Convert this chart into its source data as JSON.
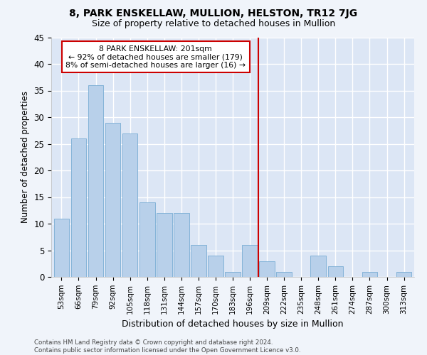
{
  "title": "8, PARK ENSKELLAW, MULLION, HELSTON, TR12 7JG",
  "subtitle": "Size of property relative to detached houses in Mullion",
  "xlabel": "Distribution of detached houses by size in Mullion",
  "ylabel": "Number of detached properties",
  "categories": [
    "53sqm",
    "66sqm",
    "79sqm",
    "92sqm",
    "105sqm",
    "118sqm",
    "131sqm",
    "144sqm",
    "157sqm",
    "170sqm",
    "183sqm",
    "196sqm",
    "209sqm",
    "222sqm",
    "235sqm",
    "248sqm",
    "261sqm",
    "274sqm",
    "287sqm",
    "300sqm",
    "313sqm"
  ],
  "values": [
    11,
    26,
    36,
    29,
    27,
    14,
    12,
    12,
    6,
    4,
    1,
    6,
    3,
    1,
    0,
    4,
    2,
    0,
    1,
    0,
    1
  ],
  "bar_color": "#b8d0ea",
  "bar_edge_color": "#7aadd4",
  "vline_color": "#cc0000",
  "annotation_line1": "8 PARK ENSKELLAW: 201sqm",
  "annotation_line2": "← 92% of detached houses are smaller (179)",
  "annotation_line3": "8% of semi-detached houses are larger (16) →",
  "annotation_box_color": "#cc0000",
  "footer": "Contains HM Land Registry data © Crown copyright and database right 2024.\nContains public sector information licensed under the Open Government Licence v3.0.",
  "ylim": [
    0,
    45
  ],
  "yticks": [
    0,
    5,
    10,
    15,
    20,
    25,
    30,
    35,
    40,
    45
  ],
  "fig_bg_color": "#f0f4fa",
  "ax_bg_color": "#dce6f5",
  "grid_color": "#ffffff",
  "title_fontsize": 10,
  "subtitle_fontsize": 9,
  "vline_pos": 11.5
}
